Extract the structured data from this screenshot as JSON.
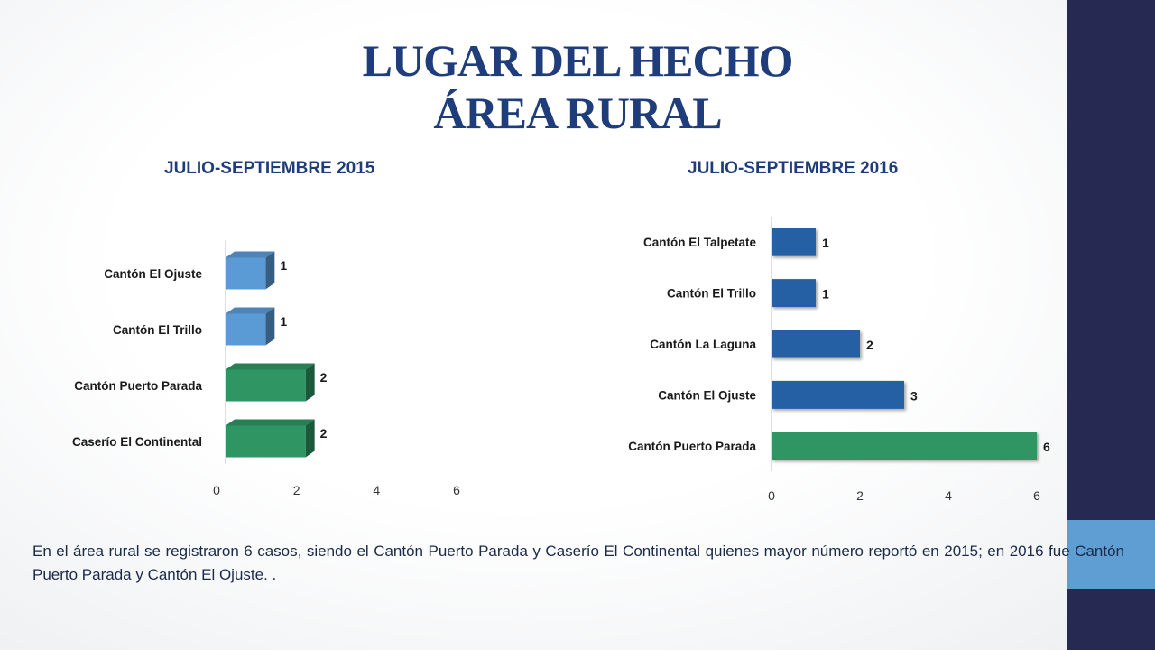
{
  "title_line1": "LUGAR DEL HECHO",
  "title_line2": "ÁREA RURAL",
  "caption": "En el área rural se registraron 6 casos, siendo el Cantón Puerto Parada y Caserío El Continental quienes mayor número reportó en 2015; en 2016 fue Cantón Puerto Parada y Cantón El Ojuste. .",
  "colors": {
    "sidebar": "#262a52",
    "sidebar_accent": "#5f9ed3",
    "title": "#1f3d7a",
    "bar_light_blue": "#5b9bd5",
    "bar_green": "#2e9563",
    "bar_dark_blue": "#2660a4"
  },
  "chart_data": [
    {
      "type": "bar",
      "orientation": "horizontal",
      "style": "3d",
      "title": "JULIO-SEPTIEMBRE 2015",
      "categories": [
        "Cantón El Ojuste",
        "Cantón El Trillo",
        "Cantón Puerto Parada",
        "Caserío El Continental"
      ],
      "values": [
        1,
        1,
        2,
        2
      ],
      "bar_colors": [
        "#5b9bd5",
        "#5b9bd5",
        "#2e9563",
        "#2e9563"
      ],
      "xlim": [
        0,
        6
      ],
      "xticks": [
        0,
        2,
        4,
        6
      ],
      "grid": false,
      "data_labels": true
    },
    {
      "type": "bar",
      "orientation": "horizontal",
      "title": "JULIO-SEPTIEMBRE 2016",
      "categories": [
        "Cantón El Talpetate",
        "Cantón El Trillo",
        "Cantón La Laguna",
        "Cantón El Ojuste",
        "Cantón Puerto Parada"
      ],
      "values": [
        1,
        1,
        2,
        3,
        6
      ],
      "bar_colors": [
        "#2660a4",
        "#2660a4",
        "#2660a4",
        "#2660a4",
        "#2e9563"
      ],
      "xlim": [
        0,
        6
      ],
      "xticks": [
        0,
        2,
        4,
        6
      ],
      "grid": false,
      "data_labels": true
    }
  ]
}
